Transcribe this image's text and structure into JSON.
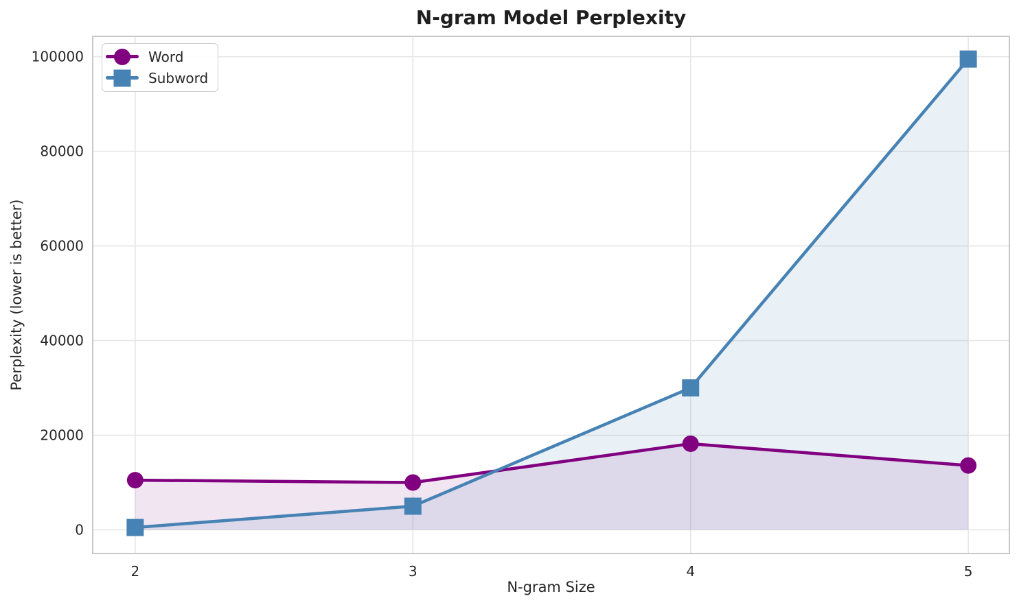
{
  "chart_data": {
    "type": "line",
    "title": "N-gram Model Perplexity",
    "xlabel": "N-gram Size",
    "ylabel": "Perplexity (lower is better)",
    "x": [
      2,
      3,
      4,
      5
    ],
    "series": [
      {
        "name": "Word",
        "marker": "circle",
        "color": "#800080",
        "fill_opacity": 0.1,
        "values": [
          10500,
          10000,
          18200,
          13600
        ]
      },
      {
        "name": "Subword",
        "marker": "square",
        "color": "#4682B4",
        "fill_opacity": 0.12,
        "values": [
          500,
          5000,
          30000,
          99500
        ]
      }
    ],
    "xticks": [
      "2",
      "3",
      "4",
      "5"
    ],
    "xtick_values": [
      2,
      3,
      4,
      5
    ],
    "yticks": [
      "0",
      "20000",
      "40000",
      "60000",
      "80000",
      "100000"
    ],
    "ytick_values": [
      0,
      20000,
      40000,
      60000,
      80000,
      100000
    ],
    "xlim": [
      1.847,
      5.148
    ],
    "ylim": [
      -5000,
      104300
    ],
    "grid": true,
    "legend_position": "upper left",
    "fill_to_zero": true,
    "styles": {
      "grid_color": "#e6e6e6",
      "frame_color": "#c8c8c8",
      "text_color": "#262626",
      "background": "#ffffff"
    }
  }
}
